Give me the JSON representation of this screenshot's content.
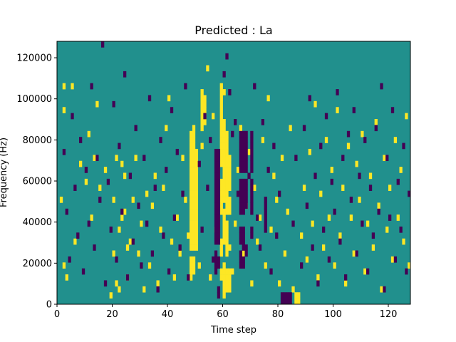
{
  "chart_data": {
    "type": "heatmap",
    "title": "Predicted : La",
    "xlabel": "Time step",
    "ylabel": "Frequency (Hz)",
    "xlim": [
      0,
      128
    ],
    "ylim": [
      0,
      128000
    ],
    "x_ticks": [
      0,
      20,
      40,
      60,
      80,
      100,
      120
    ],
    "y_ticks": [
      0,
      20000,
      40000,
      60000,
      80000,
      100000,
      120000
    ],
    "n_time_steps": 128,
    "n_freq_bins": 44,
    "grid": false,
    "legend": "none",
    "colors": {
      "background": "#21908d",
      "high": "#fde725",
      "low": "#440154"
    },
    "yellow_columns": [
      {
        "col": 48,
        "rows": [
          4,
          5,
          6,
          7,
          9,
          10,
          11,
          12,
          13,
          14,
          15,
          16,
          17,
          18,
          19,
          20,
          21,
          22,
          23,
          24,
          25,
          26,
          27,
          28
        ]
      },
      {
        "col": 49,
        "rows": [
          5,
          6,
          7,
          9,
          10,
          11,
          12,
          13,
          14,
          15,
          16,
          17,
          18,
          19,
          20,
          21,
          22,
          23,
          24,
          25,
          26,
          27,
          28,
          29
        ]
      },
      {
        "col": 50,
        "rows": [
          9,
          10,
          11,
          12,
          13,
          14,
          15,
          16,
          17,
          18,
          19,
          20,
          21,
          22,
          23,
          24,
          25
        ]
      },
      {
        "col": 52,
        "rows": [
          26,
          29,
          30,
          31,
          32,
          33,
          34,
          35
        ]
      },
      {
        "col": 53,
        "rows": [
          30,
          31,
          32,
          33,
          34
        ]
      },
      {
        "col": 59,
        "rows": [
          4,
          5,
          8,
          9,
          10,
          15,
          16,
          17,
          18,
          19,
          20,
          23,
          24,
          25,
          26,
          27,
          28,
          29,
          30,
          31,
          32,
          33,
          34,
          35,
          36
        ]
      },
      {
        "col": 60,
        "rows": [
          1,
          2,
          3,
          4,
          5,
          6,
          10,
          11,
          12,
          13,
          14,
          15,
          17,
          18,
          19,
          20,
          21,
          22,
          23,
          24,
          25,
          26,
          27,
          28,
          29,
          30,
          35
        ]
      },
      {
        "col": 61,
        "rows": [
          2,
          3,
          4,
          5,
          8,
          9,
          10,
          11,
          12,
          13,
          15,
          16,
          17,
          18,
          19,
          20,
          21,
          22,
          23,
          24,
          25,
          26,
          27,
          28
        ]
      },
      {
        "col": 62,
        "rows": [
          2,
          3,
          4,
          5,
          9,
          15,
          16,
          17,
          19,
          20,
          21,
          22,
          23,
          24
        ]
      },
      {
        "col": 86,
        "rows": [
          0,
          1
        ]
      },
      {
        "col": 87,
        "rows": [
          0,
          1
        ]
      }
    ],
    "yellow_points": [
      [
        1,
        17
      ],
      [
        2,
        6
      ],
      [
        2,
        32
      ],
      [
        2,
        36
      ],
      [
        3,
        4
      ],
      [
        5,
        36
      ],
      [
        6,
        10
      ],
      [
        8,
        23
      ],
      [
        10,
        20
      ],
      [
        11,
        28
      ],
      [
        12,
        14
      ],
      [
        13,
        24
      ],
      [
        14,
        33
      ],
      [
        15,
        19
      ],
      [
        17,
        22
      ],
      [
        19,
        1
      ],
      [
        20,
        8
      ],
      [
        20,
        17
      ],
      [
        21,
        3
      ],
      [
        21,
        24
      ],
      [
        22,
        2
      ],
      [
        22,
        12
      ],
      [
        23,
        14
      ],
      [
        23,
        23
      ],
      [
        24,
        15
      ],
      [
        24,
        21
      ],
      [
        25,
        9
      ],
      [
        25,
        4
      ],
      [
        26,
        10
      ],
      [
        27,
        17
      ],
      [
        28,
        24
      ],
      [
        29,
        8
      ],
      [
        30,
        13
      ],
      [
        31,
        2
      ],
      [
        32,
        18
      ],
      [
        33,
        6
      ],
      [
        34,
        16
      ],
      [
        35,
        21
      ],
      [
        36,
        3
      ],
      [
        37,
        12
      ],
      [
        38,
        19
      ],
      [
        39,
        29
      ],
      [
        40,
        34
      ],
      [
        41,
        10
      ],
      [
        42,
        4
      ],
      [
        43,
        14
      ],
      [
        44,
        8
      ],
      [
        45,
        24
      ],
      [
        46,
        17
      ],
      [
        47,
        11
      ],
      [
        51,
        6
      ],
      [
        54,
        39
      ],
      [
        55,
        4
      ],
      [
        56,
        31
      ],
      [
        57,
        12
      ],
      [
        58,
        21
      ],
      [
        63,
        5
      ],
      [
        64,
        13
      ],
      [
        65,
        22
      ],
      [
        66,
        29
      ],
      [
        67,
        8
      ],
      [
        68,
        16
      ],
      [
        69,
        25
      ],
      [
        70,
        3
      ],
      [
        71,
        19
      ],
      [
        72,
        10
      ],
      [
        73,
        14
      ],
      [
        74,
        27
      ],
      [
        75,
        6
      ],
      [
        76,
        34
      ],
      [
        77,
        12
      ],
      [
        78,
        21
      ],
      [
        79,
        17
      ],
      [
        80,
        3
      ],
      [
        81,
        24
      ],
      [
        82,
        8
      ],
      [
        83,
        15
      ],
      [
        84,
        29
      ],
      [
        85,
        2
      ],
      [
        88,
        11
      ],
      [
        89,
        19
      ],
      [
        90,
        7
      ],
      [
        91,
        25
      ],
      [
        92,
        13
      ],
      [
        93,
        33
      ],
      [
        94,
        4
      ],
      [
        95,
        18
      ],
      [
        96,
        9
      ],
      [
        97,
        27
      ],
      [
        98,
        14
      ],
      [
        99,
        22
      ],
      [
        100,
        6
      ],
      [
        101,
        32
      ],
      [
        102,
        11
      ],
      [
        103,
        19
      ],
      [
        104,
        3
      ],
      [
        105,
        26
      ],
      [
        106,
        14
      ],
      [
        107,
        8
      ],
      [
        108,
        23
      ],
      [
        109,
        17
      ],
      [
        110,
        28
      ],
      [
        111,
        5
      ],
      [
        112,
        13
      ],
      [
        113,
        21
      ],
      [
        114,
        9
      ],
      [
        115,
        30
      ],
      [
        116,
        16
      ],
      [
        117,
        2
      ],
      [
        118,
        24
      ],
      [
        119,
        12
      ],
      [
        120,
        19
      ],
      [
        121,
        7
      ],
      [
        122,
        27
      ],
      [
        123,
        14
      ],
      [
        124,
        22
      ],
      [
        125,
        10
      ],
      [
        126,
        31
      ],
      [
        127,
        6
      ]
    ],
    "purple_columns": [
      {
        "col": 57,
        "rows": [
          5,
          6,
          7,
          8,
          10,
          11,
          12,
          13,
          14,
          15,
          16,
          17,
          18,
          19,
          20,
          21,
          22,
          23,
          24,
          25
        ]
      },
      {
        "col": 58,
        "rows": [
          1,
          2,
          6,
          7,
          10,
          11,
          12,
          13,
          14,
          15,
          16,
          17,
          18,
          19,
          20,
          21,
          22,
          23,
          24,
          25
        ]
      },
      {
        "col": 66,
        "rows": [
          6,
          7,
          8,
          10,
          11,
          12,
          15,
          16,
          17,
          18,
          19,
          20,
          22,
          23,
          24,
          25,
          26,
          27,
          28
        ]
      },
      {
        "col": 67,
        "rows": [
          6,
          7,
          9,
          10,
          11,
          12,
          15,
          16,
          17,
          18,
          19,
          20,
          22,
          23,
          24,
          25,
          26,
          27,
          28
        ]
      },
      {
        "col": 68,
        "rows": [
          8,
          9,
          16,
          17,
          18,
          19,
          20,
          22,
          23,
          24,
          25,
          26,
          27,
          28
        ]
      },
      {
        "col": 70,
        "rows": [
          11,
          12,
          15,
          16,
          17,
          18,
          19,
          20,
          22,
          23,
          24,
          25,
          26,
          27,
          28
        ]
      },
      {
        "col": 75,
        "rows": [
          12,
          13,
          14,
          15,
          16,
          17
        ]
      },
      {
        "col": 81,
        "rows": [
          0,
          1
        ]
      },
      {
        "col": 82,
        "rows": [
          0,
          1
        ]
      },
      {
        "col": 83,
        "rows": [
          0,
          1
        ]
      },
      {
        "col": 84,
        "rows": [
          0,
          1
        ]
      }
    ],
    "purple_points": [
      [
        2,
        25
      ],
      [
        3,
        15
      ],
      [
        4,
        7
      ],
      [
        5,
        31
      ],
      [
        6,
        19
      ],
      [
        7,
        11
      ],
      [
        8,
        27
      ],
      [
        9,
        5
      ],
      [
        10,
        22
      ],
      [
        11,
        13
      ],
      [
        12,
        36
      ],
      [
        13,
        9
      ],
      [
        14,
        24
      ],
      [
        15,
        17
      ],
      [
        16,
        43
      ],
      [
        17,
        3
      ],
      [
        18,
        20
      ],
      [
        19,
        12
      ],
      [
        20,
        33
      ],
      [
        21,
        7
      ],
      [
        22,
        26
      ],
      [
        23,
        15
      ],
      [
        24,
        38
      ],
      [
        25,
        4
      ],
      [
        26,
        21
      ],
      [
        27,
        10
      ],
      [
        28,
        29
      ],
      [
        29,
        16
      ],
      [
        30,
        6
      ],
      [
        31,
        24
      ],
      [
        32,
        13
      ],
      [
        33,
        34
      ],
      [
        34,
        8
      ],
      [
        35,
        19
      ],
      [
        36,
        2
      ],
      [
        37,
        27
      ],
      [
        38,
        11
      ],
      [
        39,
        22
      ],
      [
        40,
        5
      ],
      [
        41,
        32
      ],
      [
        42,
        14
      ],
      [
        43,
        25
      ],
      [
        44,
        9
      ],
      [
        45,
        18
      ],
      [
        46,
        36
      ],
      [
        47,
        4
      ],
      [
        51,
        23
      ],
      [
        52,
        12
      ],
      [
        53,
        31
      ],
      [
        54,
        19
      ],
      [
        55,
        27
      ],
      [
        56,
        7
      ],
      [
        60,
        38
      ],
      [
        61,
        41
      ],
      [
        62,
        35
      ],
      [
        63,
        28
      ],
      [
        64,
        30
      ],
      [
        65,
        18
      ],
      [
        69,
        21
      ],
      [
        71,
        36
      ],
      [
        72,
        14
      ],
      [
        73,
        9
      ],
      [
        74,
        30
      ],
      [
        76,
        22
      ],
      [
        77,
        5
      ],
      [
        78,
        26
      ],
      [
        79,
        11
      ],
      [
        80,
        18
      ],
      [
        85,
        13
      ],
      [
        86,
        24
      ],
      [
        88,
        6
      ],
      [
        89,
        29
      ],
      [
        90,
        16
      ],
      [
        91,
        34
      ],
      [
        92,
        9
      ],
      [
        93,
        21
      ],
      [
        94,
        3
      ],
      [
        95,
        26
      ],
      [
        96,
        12
      ],
      [
        97,
        31
      ],
      [
        98,
        7
      ],
      [
        99,
        20
      ],
      [
        100,
        15
      ],
      [
        101,
        35
      ],
      [
        102,
        10
      ],
      [
        103,
        24
      ],
      [
        104,
        4
      ],
      [
        105,
        28
      ],
      [
        106,
        17
      ],
      [
        107,
        32
      ],
      [
        108,
        8
      ],
      [
        109,
        21
      ],
      [
        110,
        13
      ],
      [
        111,
        27
      ],
      [
        112,
        5
      ],
      [
        113,
        19
      ],
      [
        114,
        11
      ],
      [
        115,
        29
      ],
      [
        116,
        15
      ],
      [
        117,
        36
      ],
      [
        118,
        2
      ],
      [
        119,
        24
      ],
      [
        120,
        14
      ],
      [
        121,
        32
      ],
      [
        122,
        7
      ],
      [
        123,
        20
      ],
      [
        124,
        12
      ],
      [
        125,
        26
      ],
      [
        126,
        5
      ],
      [
        127,
        18
      ]
    ]
  }
}
